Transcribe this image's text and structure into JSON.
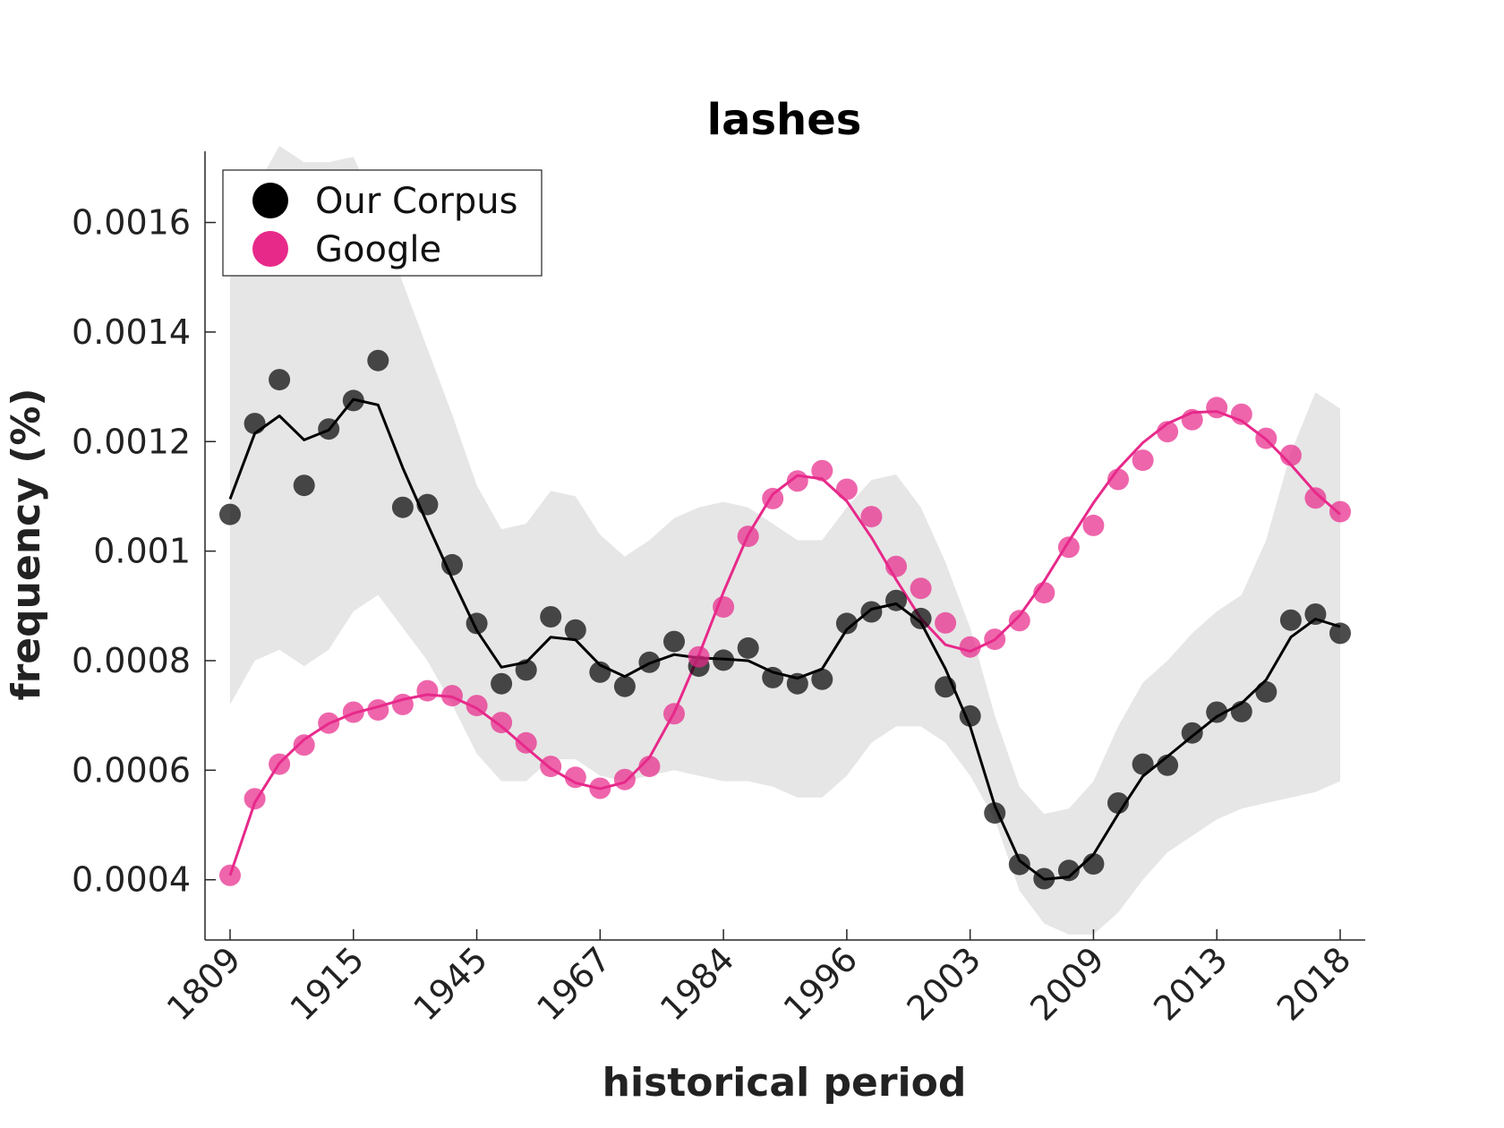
{
  "chart_data": {
    "type": "scatter",
    "title": "lashes",
    "xlabel": "historical period",
    "ylabel": "frequency (%)",
    "x_tick_labels": [
      "1809",
      "1915",
      "1945",
      "1967",
      "1984",
      "1996",
      "2003",
      "2009",
      "2013",
      "2018"
    ],
    "y_ticks": [
      0.0004,
      0.0006,
      0.0008,
      0.001,
      0.0012,
      0.0014,
      0.0016
    ],
    "y_tick_labels": [
      "0.0004",
      "0.0006",
      "0.0008",
      "0.001",
      "0.0012",
      "0.0014",
      "0.0016"
    ],
    "ylim": [
      0.00029,
      0.00173
    ],
    "legend_position": "top-left",
    "series": [
      {
        "name": "Our Corpus",
        "color": "#000000",
        "points": [
          0.001067,
          0.001233,
          0.001313,
          0.00112,
          0.001223,
          0.001275,
          0.001348,
          0.00108,
          0.001085,
          0.000975,
          0.000868,
          0.000758,
          0.000783,
          0.00088,
          0.000856,
          0.000779,
          0.000753,
          0.000797,
          0.000835,
          0.00079,
          0.000801,
          0.000823,
          0.000769,
          0.000758,
          0.000766,
          0.000868,
          0.000889,
          0.00091,
          0.000877,
          0.000752,
          0.000699,
          0.000522,
          0.000428,
          0.000402,
          0.000417,
          0.000429,
          0.00054,
          0.000611,
          0.000609,
          0.000668,
          0.000706,
          0.000707,
          0.000743,
          0.000874,
          0.000885,
          0.00085
        ],
        "smoothed": [
          0.001095,
          0.001215,
          0.001247,
          0.001203,
          0.001221,
          0.001277,
          0.001267,
          0.001152,
          0.00105,
          0.00095,
          0.000855,
          0.000788,
          0.000797,
          0.000843,
          0.000838,
          0.000792,
          0.000771,
          0.000795,
          0.000811,
          0.000805,
          0.000803,
          0.0008,
          0.000779,
          0.000768,
          0.000785,
          0.000857,
          0.000894,
          0.000904,
          0.00087,
          0.000785,
          0.00068,
          0.000535,
          0.000435,
          0.000401,
          0.000405,
          0.000446,
          0.00052,
          0.000589,
          0.000625,
          0.000662,
          0.000698,
          0.000722,
          0.000765,
          0.000843,
          0.000876,
          0.000862
        ],
        "band_upper": [
          0.00162,
          0.00166,
          0.00174,
          0.00171,
          0.00171,
          0.00172,
          0.00162,
          0.00149,
          0.00137,
          0.00125,
          0.00112,
          0.00104,
          0.00105,
          0.00111,
          0.0011,
          0.00103,
          0.00099,
          0.00102,
          0.00106,
          0.00108,
          0.00109,
          0.00108,
          0.00105,
          0.00102,
          0.00102,
          0.00108,
          0.00113,
          0.00114,
          0.00108,
          0.00098,
          0.00086,
          0.0007,
          0.00057,
          0.00052,
          0.00053,
          0.00058,
          0.00068,
          0.00076,
          0.0008,
          0.00085,
          0.00089,
          0.00092,
          0.00102,
          0.00118,
          0.00129,
          0.00126
        ],
        "band_lower": [
          0.00072,
          0.0008,
          0.00082,
          0.00079,
          0.00082,
          0.00089,
          0.00092,
          0.00086,
          0.0008,
          0.00072,
          0.00063,
          0.00058,
          0.00058,
          0.00062,
          0.00062,
          0.00059,
          0.00058,
          0.00059,
          0.0006,
          0.00059,
          0.00058,
          0.00058,
          0.00057,
          0.00055,
          0.00055,
          0.00059,
          0.00065,
          0.00068,
          0.00068,
          0.00065,
          0.00059,
          0.00051,
          0.00038,
          0.00032,
          0.0003,
          0.0003,
          0.00034,
          0.0004,
          0.00045,
          0.00048,
          0.00051,
          0.00053,
          0.00054,
          0.00055,
          0.00056,
          0.00058
        ]
      },
      {
        "name": "Google",
        "color": "#e7298a",
        "points": [
          0.000408,
          0.000548,
          0.000611,
          0.000646,
          0.000686,
          0.000706,
          0.00071,
          0.00072,
          0.000745,
          0.000736,
          0.000718,
          0.000687,
          0.00065,
          0.000607,
          0.000587,
          0.000567,
          0.000583,
          0.000607,
          0.000703,
          0.000807,
          0.000898,
          0.001027,
          0.001096,
          0.001128,
          0.001147,
          0.001113,
          0.001063,
          0.000972,
          0.000932,
          0.000869,
          0.000825,
          0.000839,
          0.000873,
          0.000924,
          0.001007,
          0.001047,
          0.001131,
          0.001166,
          0.001218,
          0.00124,
          0.001262,
          0.00125,
          0.001206,
          0.001175,
          0.001097,
          0.001072
        ],
        "smoothed": [
          0.000408,
          0.000541,
          0.000613,
          0.000656,
          0.000685,
          0.000704,
          0.000716,
          0.000729,
          0.000738,
          0.000734,
          0.000713,
          0.00068,
          0.000641,
          0.000603,
          0.000577,
          0.000566,
          0.000578,
          0.000623,
          0.000705,
          0.00081,
          0.000925,
          0.00103,
          0.001104,
          0.001138,
          0.001132,
          0.001091,
          0.001025,
          0.000948,
          0.000877,
          0.000829,
          0.000817,
          0.000838,
          0.000882,
          0.000945,
          0.001018,
          0.001088,
          0.00115,
          0.001198,
          0.001233,
          0.001253,
          0.001255,
          0.001238,
          0.001204,
          0.001158,
          0.001107,
          0.001067
        ]
      }
    ]
  }
}
